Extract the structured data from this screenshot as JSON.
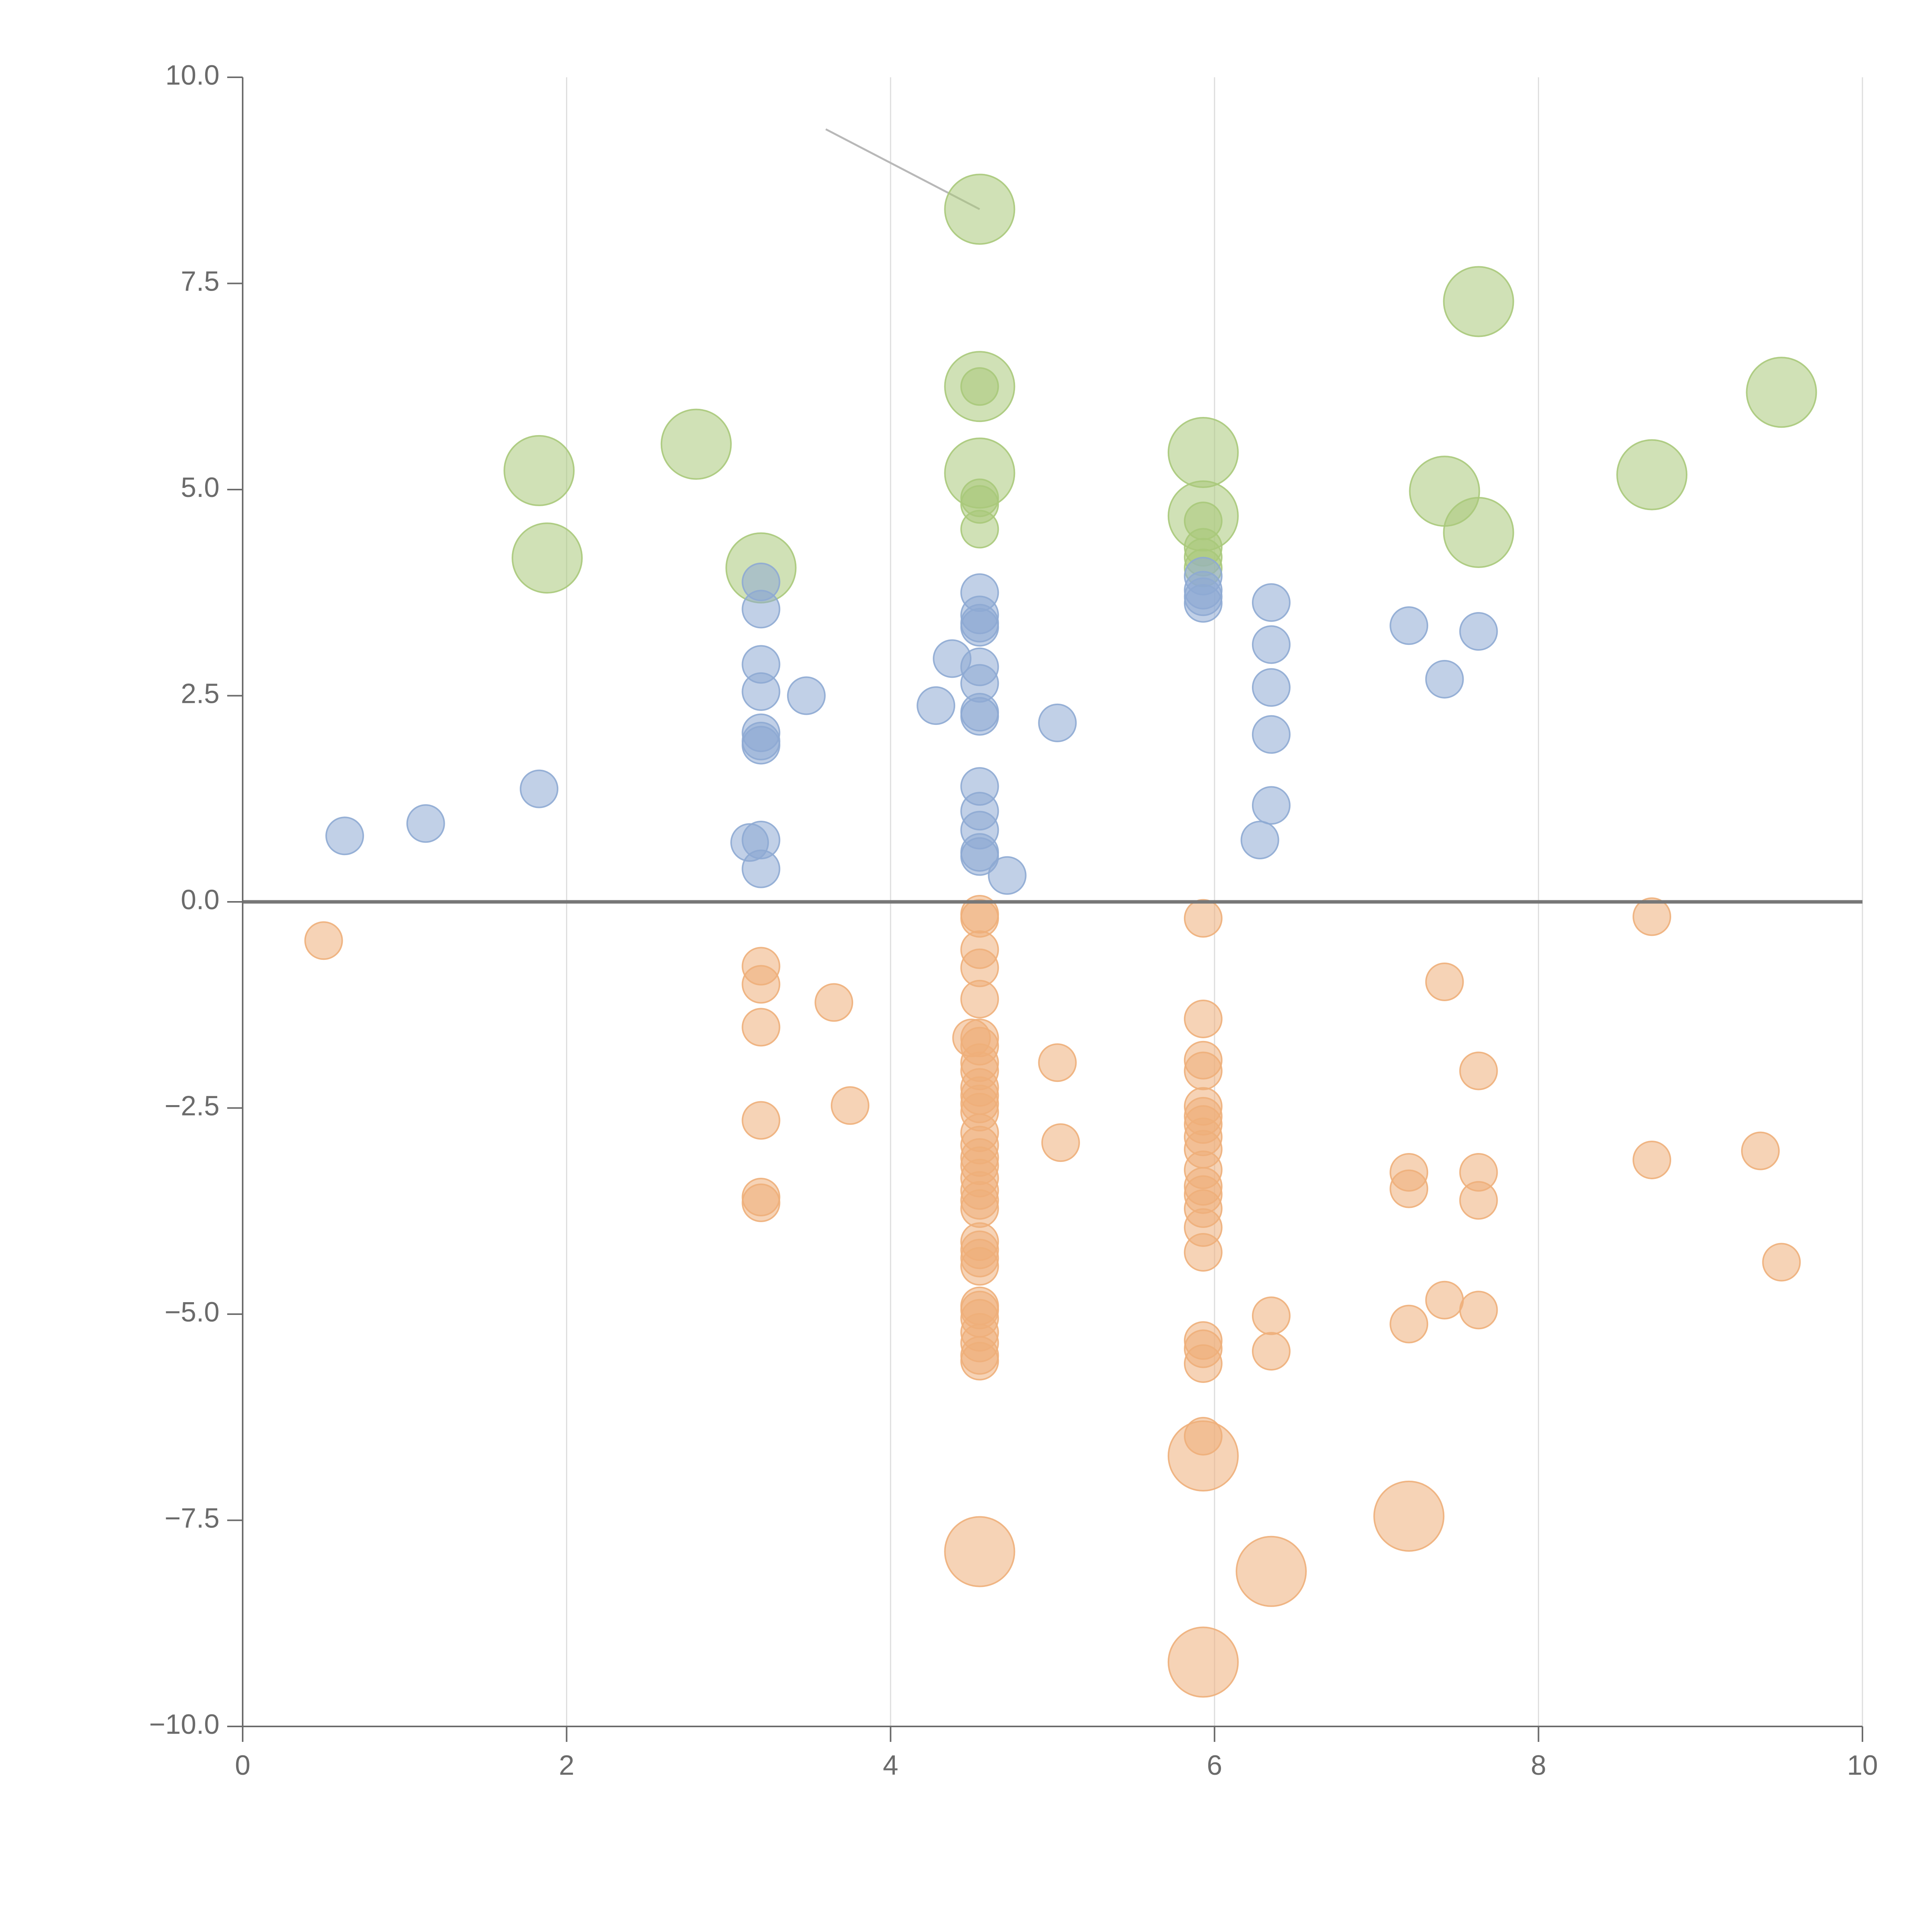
{
  "chart_data": {
    "type": "scatter",
    "title": "",
    "xlabel": "",
    "ylabel": "",
    "xlim": [
      0,
      10
    ],
    "ylim": [
      -10,
      10
    ],
    "x_ticks": [
      0,
      2,
      4,
      6,
      8,
      10
    ],
    "x_tick_labels": [
      "0",
      "2",
      "4",
      "6",
      "8",
      "10"
    ],
    "y_ticks": [
      10,
      7.5,
      5,
      2.5,
      0,
      -2.5,
      -5,
      -7.5,
      -10
    ],
    "y_tick_labels": [
      "10.0",
      "7.5",
      "5.0",
      "2.5",
      "0.0",
      "−2.5",
      "−5.0",
      "−7.5",
      "−10.0"
    ],
    "grid": "vertical",
    "reference_line": {
      "y": 0
    },
    "annotation_line": {
      "from": [
        3.6,
        9.37
      ],
      "to": [
        4.55,
        8.4
      ]
    },
    "series": [
      {
        "name": "green",
        "color": "#a9c97a",
        "points": [
          {
            "x": 4.55,
            "y": 8.4,
            "size": 2
          },
          {
            "x": 7.63,
            "y": 7.28,
            "size": 2
          },
          {
            "x": 9.5,
            "y": 6.18,
            "size": 2
          },
          {
            "x": 4.55,
            "y": 6.25,
            "size": 2
          },
          {
            "x": 4.55,
            "y": 6.25,
            "size": 0.5
          },
          {
            "x": 2.8,
            "y": 5.55,
            "size": 2
          },
          {
            "x": 5.93,
            "y": 5.45,
            "size": 2
          },
          {
            "x": 1.83,
            "y": 5.23,
            "size": 2
          },
          {
            "x": 4.55,
            "y": 5.2,
            "size": 2
          },
          {
            "x": 8.7,
            "y": 5.18,
            "size": 2
          },
          {
            "x": 7.42,
            "y": 4.98,
            "size": 2
          },
          {
            "x": 4.55,
            "y": 4.9,
            "size": 0.5
          },
          {
            "x": 4.55,
            "y": 4.82,
            "size": 0.5
          },
          {
            "x": 5.93,
            "y": 4.68,
            "size": 2
          },
          {
            "x": 5.93,
            "y": 4.62,
            "size": 0.5
          },
          {
            "x": 4.55,
            "y": 4.52,
            "size": 0.5
          },
          {
            "x": 7.63,
            "y": 4.48,
            "size": 2
          },
          {
            "x": 5.93,
            "y": 4.3,
            "size": 0.5
          },
          {
            "x": 5.93,
            "y": 4.18,
            "size": 0.5
          },
          {
            "x": 1.88,
            "y": 4.17,
            "size": 2
          },
          {
            "x": 3.2,
            "y": 4.05,
            "size": 2
          },
          {
            "x": 5.93,
            "y": 4.05,
            "size": 0.5
          }
        ]
      },
      {
        "name": "blue",
        "color": "#8eaad3",
        "points": [
          {
            "x": 3.2,
            "y": 3.88,
            "size": 0.5
          },
          {
            "x": 5.93,
            "y": 3.95,
            "size": 0.5
          },
          {
            "x": 4.55,
            "y": 3.75,
            "size": 0.5
          },
          {
            "x": 5.93,
            "y": 3.78,
            "size": 0.5
          },
          {
            "x": 5.93,
            "y": 3.7,
            "size": 0.5
          },
          {
            "x": 5.93,
            "y": 3.62,
            "size": 0.5
          },
          {
            "x": 6.35,
            "y": 3.63,
            "size": 0.5
          },
          {
            "x": 3.2,
            "y": 3.55,
            "size": 0.5
          },
          {
            "x": 4.55,
            "y": 3.48,
            "size": 0.5
          },
          {
            "x": 4.55,
            "y": 3.38,
            "size": 0.5
          },
          {
            "x": 4.55,
            "y": 3.33,
            "size": 0.5
          },
          {
            "x": 7.2,
            "y": 3.35,
            "size": 0.5
          },
          {
            "x": 7.63,
            "y": 3.28,
            "size": 0.5
          },
          {
            "x": 6.35,
            "y": 3.12,
            "size": 0.5
          },
          {
            "x": 4.38,
            "y": 2.95,
            "size": 0.5
          },
          {
            "x": 3.2,
            "y": 2.88,
            "size": 0.5
          },
          {
            "x": 4.55,
            "y": 2.85,
            "size": 0.5
          },
          {
            "x": 7.42,
            "y": 2.7,
            "size": 0.5
          },
          {
            "x": 4.55,
            "y": 2.65,
            "size": 0.5
          },
          {
            "x": 6.35,
            "y": 2.6,
            "size": 0.5
          },
          {
            "x": 3.2,
            "y": 2.55,
            "size": 0.5
          },
          {
            "x": 3.48,
            "y": 2.5,
            "size": 0.5
          },
          {
            "x": 4.28,
            "y": 2.38,
            "size": 0.5
          },
          {
            "x": 4.55,
            "y": 2.3,
            "size": 0.5
          },
          {
            "x": 4.55,
            "y": 2.25,
            "size": 0.5
          },
          {
            "x": 5.03,
            "y": 2.17,
            "size": 0.5
          },
          {
            "x": 3.2,
            "y": 2.05,
            "size": 0.5
          },
          {
            "x": 6.35,
            "y": 2.03,
            "size": 0.5
          },
          {
            "x": 3.2,
            "y": 1.95,
            "size": 0.5
          },
          {
            "x": 3.2,
            "y": 1.9,
            "size": 0.5
          },
          {
            "x": 4.55,
            "y": 1.4,
            "size": 0.5
          },
          {
            "x": 1.83,
            "y": 1.37,
            "size": 0.5
          },
          {
            "x": 6.35,
            "y": 1.17,
            "size": 0.5
          },
          {
            "x": 4.55,
            "y": 1.1,
            "size": 0.5
          },
          {
            "x": 1.13,
            "y": 0.95,
            "size": 0.5
          },
          {
            "x": 4.55,
            "y": 0.87,
            "size": 0.5
          },
          {
            "x": 0.63,
            "y": 0.8,
            "size": 0.5
          },
          {
            "x": 6.28,
            "y": 0.75,
            "size": 0.5
          },
          {
            "x": 3.2,
            "y": 0.75,
            "size": 0.5
          },
          {
            "x": 3.13,
            "y": 0.72,
            "size": 0.5
          },
          {
            "x": 4.55,
            "y": 0.6,
            "size": 0.5
          },
          {
            "x": 4.55,
            "y": 0.55,
            "size": 0.5
          },
          {
            "x": 3.2,
            "y": 0.4,
            "size": 0.5
          },
          {
            "x": 4.72,
            "y": 0.32,
            "size": 0.5
          }
        ]
      },
      {
        "name": "orange",
        "color": "#eeaf7a",
        "points": [
          {
            "x": 4.55,
            "y": -0.15,
            "size": 0.5
          },
          {
            "x": 4.55,
            "y": -0.2,
            "size": 0.5
          },
          {
            "x": 5.93,
            "y": -0.2,
            "size": 0.5
          },
          {
            "x": 8.7,
            "y": -0.18,
            "size": 0.5
          },
          {
            "x": 0.5,
            "y": -0.47,
            "size": 0.5
          },
          {
            "x": 4.55,
            "y": -0.58,
            "size": 0.5
          },
          {
            "x": 3.2,
            "y": -0.78,
            "size": 0.5
          },
          {
            "x": 4.55,
            "y": -0.8,
            "size": 0.5
          },
          {
            "x": 7.42,
            "y": -0.97,
            "size": 0.5
          },
          {
            "x": 3.2,
            "y": -1.0,
            "size": 0.5
          },
          {
            "x": 4.55,
            "y": -1.18,
            "size": 0.5
          },
          {
            "x": 3.65,
            "y": -1.22,
            "size": 0.5
          },
          {
            "x": 5.93,
            "y": -1.42,
            "size": 0.5
          },
          {
            "x": 3.2,
            "y": -1.52,
            "size": 0.5
          },
          {
            "x": 4.55,
            "y": -1.65,
            "size": 0.5
          },
          {
            "x": 4.5,
            "y": -1.65,
            "size": 0.5
          },
          {
            "x": 4.55,
            "y": -1.75,
            "size": 0.5
          },
          {
            "x": 5.93,
            "y": -1.92,
            "size": 0.5
          },
          {
            "x": 4.55,
            "y": -1.95,
            "size": 0.5
          },
          {
            "x": 5.03,
            "y": -1.95,
            "size": 0.5
          },
          {
            "x": 4.55,
            "y": -2.05,
            "size": 0.5
          },
          {
            "x": 5.93,
            "y": -2.05,
            "size": 0.5
          },
          {
            "x": 7.63,
            "y": -2.05,
            "size": 0.5
          },
          {
            "x": 4.55,
            "y": -2.25,
            "size": 0.5
          },
          {
            "x": 4.55,
            "y": -2.35,
            "size": 0.5
          },
          {
            "x": 4.55,
            "y": -2.45,
            "size": 0.5
          },
          {
            "x": 5.93,
            "y": -2.48,
            "size": 0.5
          },
          {
            "x": 3.75,
            "y": -2.47,
            "size": 0.5
          },
          {
            "x": 4.55,
            "y": -2.55,
            "size": 0.5
          },
          {
            "x": 5.93,
            "y": -2.6,
            "size": 0.5
          },
          {
            "x": 3.2,
            "y": -2.65,
            "size": 0.5
          },
          {
            "x": 5.93,
            "y": -2.7,
            "size": 0.5
          },
          {
            "x": 4.55,
            "y": -2.8,
            "size": 0.5
          },
          {
            "x": 5.93,
            "y": -2.85,
            "size": 0.5
          },
          {
            "x": 4.55,
            "y": -2.95,
            "size": 0.5
          },
          {
            "x": 5.05,
            "y": -2.92,
            "size": 0.5
          },
          {
            "x": 5.93,
            "y": -3.0,
            "size": 0.5
          },
          {
            "x": 4.55,
            "y": -3.1,
            "size": 0.5
          },
          {
            "x": 8.7,
            "y": -3.13,
            "size": 0.5
          },
          {
            "x": 9.37,
            "y": -3.02,
            "size": 0.5
          },
          {
            "x": 4.55,
            "y": -3.2,
            "size": 0.5
          },
          {
            "x": 5.93,
            "y": -3.25,
            "size": 0.5
          },
          {
            "x": 7.2,
            "y": -3.28,
            "size": 0.5
          },
          {
            "x": 7.63,
            "y": -3.28,
            "size": 0.5
          },
          {
            "x": 4.55,
            "y": -3.35,
            "size": 0.5
          },
          {
            "x": 5.93,
            "y": -3.45,
            "size": 0.5
          },
          {
            "x": 7.2,
            "y": -3.48,
            "size": 0.5
          },
          {
            "x": 4.55,
            "y": -3.5,
            "size": 0.5
          },
          {
            "x": 5.93,
            "y": -3.55,
            "size": 0.5
          },
          {
            "x": 3.2,
            "y": -3.58,
            "size": 0.5
          },
          {
            "x": 4.55,
            "y": -3.62,
            "size": 0.5
          },
          {
            "x": 7.63,
            "y": -3.62,
            "size": 0.5
          },
          {
            "x": 3.2,
            "y": -3.65,
            "size": 0.5
          },
          {
            "x": 4.55,
            "y": -3.72,
            "size": 0.5
          },
          {
            "x": 5.93,
            "y": -3.72,
            "size": 0.5
          },
          {
            "x": 5.93,
            "y": -3.95,
            "size": 0.5
          },
          {
            "x": 4.55,
            "y": -4.12,
            "size": 0.5
          },
          {
            "x": 5.93,
            "y": -4.25,
            "size": 0.5
          },
          {
            "x": 4.55,
            "y": -4.22,
            "size": 0.5
          },
          {
            "x": 4.55,
            "y": -4.32,
            "size": 0.5
          },
          {
            "x": 9.5,
            "y": -4.37,
            "size": 0.5
          },
          {
            "x": 4.55,
            "y": -4.42,
            "size": 0.5
          },
          {
            "x": 7.42,
            "y": -4.83,
            "size": 0.5
          },
          {
            "x": 4.55,
            "y": -4.9,
            "size": 0.5
          },
          {
            "x": 4.55,
            "y": -4.95,
            "size": 0.5
          },
          {
            "x": 7.63,
            "y": -4.95,
            "size": 0.5
          },
          {
            "x": 6.35,
            "y": -5.02,
            "size": 0.5
          },
          {
            "x": 4.55,
            "y": -5.05,
            "size": 0.5
          },
          {
            "x": 7.2,
            "y": -5.12,
            "size": 0.5
          },
          {
            "x": 4.55,
            "y": -5.22,
            "size": 0.5
          },
          {
            "x": 5.93,
            "y": -5.32,
            "size": 0.5
          },
          {
            "x": 4.55,
            "y": -5.35,
            "size": 0.5
          },
          {
            "x": 5.93,
            "y": -5.42,
            "size": 0.5
          },
          {
            "x": 6.35,
            "y": -5.45,
            "size": 0.5
          },
          {
            "x": 4.55,
            "y": -5.5,
            "size": 0.5
          },
          {
            "x": 4.55,
            "y": -5.57,
            "size": 0.5
          },
          {
            "x": 5.93,
            "y": -5.6,
            "size": 0.5
          },
          {
            "x": 5.93,
            "y": -6.48,
            "size": 0.5
          },
          {
            "x": 5.93,
            "y": -6.72,
            "size": 2
          },
          {
            "x": 7.2,
            "y": -7.45,
            "size": 2
          },
          {
            "x": 4.55,
            "y": -7.88,
            "size": 2
          },
          {
            "x": 6.35,
            "y": -8.12,
            "size": 2
          },
          {
            "x": 5.93,
            "y": -9.22,
            "size": 2
          }
        ]
      }
    ]
  }
}
